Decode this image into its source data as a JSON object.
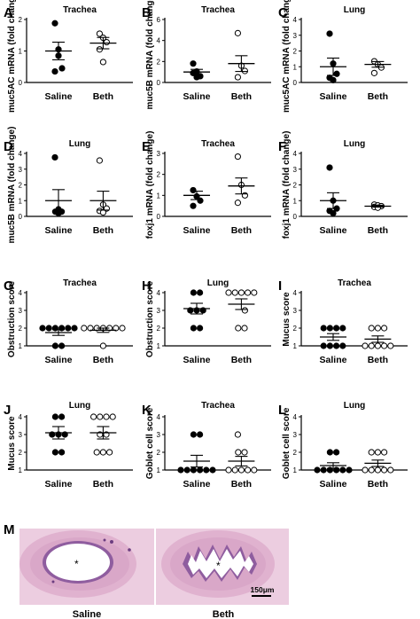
{
  "chart_data": [
    {
      "panel": "A",
      "type": "scatter",
      "title": "Trachea",
      "ylabel": "muc5AC mRNA (fold change)",
      "ylim": [
        0,
        2
      ],
      "yticks": [
        0,
        1,
        2
      ],
      "categories": [
        "Saline",
        "Beth"
      ],
      "series": [
        {
          "values": [
            1.88,
            0.85,
            0.45,
            0.35,
            1.05
          ],
          "fill": "#000"
        },
        {
          "values": [
            1.55,
            1.42,
            1.28,
            1.05,
            0.65
          ],
          "fill": "#fff"
        }
      ],
      "mean": [
        1.0,
        1.25
      ],
      "sem": [
        0.28,
        0.18
      ]
    },
    {
      "panel": "B",
      "type": "scatter",
      "title": "Trachea",
      "ylabel": "muc5B mRNA (fold change)",
      "ylim": [
        0,
        6
      ],
      "yticks": [
        0,
        2,
        4,
        6
      ],
      "categories": [
        "Saline",
        "Beth"
      ],
      "series": [
        {
          "values": [
            1.8,
            1.05,
            0.6,
            0.9,
            0.5
          ],
          "fill": "#000"
        },
        {
          "values": [
            4.7,
            1.6,
            1.1,
            0.5
          ],
          "fill": "#fff"
        }
      ],
      "mean": [
        1.0,
        1.8
      ],
      "sem": [
        0.25,
        0.75
      ]
    },
    {
      "panel": "C",
      "type": "scatter",
      "title": "Lung",
      "ylabel": "muc5AC mRNA (fold change)",
      "ylim": [
        0,
        4
      ],
      "yticks": [
        0,
        1,
        2,
        3,
        4
      ],
      "categories": [
        "Saline",
        "Beth"
      ],
      "series": [
        {
          "values": [
            3.1,
            1.2,
            0.55,
            0.3,
            0.15
          ],
          "fill": "#000"
        },
        {
          "values": [
            1.35,
            1.15,
            0.95,
            0.6
          ],
          "fill": "#fff"
        }
      ],
      "mean": [
        1.0,
        1.15
      ],
      "sem": [
        0.55,
        0.18
      ]
    },
    {
      "panel": "D",
      "type": "scatter",
      "title": "Lung",
      "ylabel": "muc5B mRNA (fold change)",
      "ylim": [
        0,
        4
      ],
      "yticks": [
        0,
        1,
        2,
        3,
        4
      ],
      "categories": [
        "Saline",
        "Beth"
      ],
      "series": [
        {
          "values": [
            3.75,
            0.45,
            0.3,
            0.3,
            0.2
          ],
          "fill": "#000"
        },
        {
          "values": [
            3.55,
            0.75,
            0.5,
            0.35,
            0.25
          ],
          "fill": "#fff"
        }
      ],
      "mean": [
        1.0,
        1.0
      ],
      "sem": [
        0.7,
        0.6
      ]
    },
    {
      "panel": "E",
      "type": "scatter",
      "title": "Trachea",
      "ylabel": "foxj1 mRNA (fold change)",
      "ylim": [
        0,
        3
      ],
      "yticks": [
        0,
        1,
        2,
        3
      ],
      "categories": [
        "Saline",
        "Beth"
      ],
      "series": [
        {
          "values": [
            1.25,
            0.95,
            0.75,
            0.5
          ],
          "fill": "#000"
        },
        {
          "values": [
            2.85,
            1.5,
            1.0,
            0.65
          ],
          "fill": "#fff"
        }
      ],
      "mean": [
        1.0,
        1.45
      ],
      "sem": [
        0.2,
        0.38
      ]
    },
    {
      "panel": "F",
      "type": "scatter",
      "title": "Lung",
      "ylabel": "foxj1 mRNA (fold change)",
      "ylim": [
        0,
        4
      ],
      "yticks": [
        0,
        1,
        2,
        3,
        4
      ],
      "categories": [
        "Saline",
        "Beth"
      ],
      "series": [
        {
          "values": [
            3.1,
            1.0,
            0.5,
            0.35,
            0.2
          ],
          "fill": "#000"
        },
        {
          "values": [
            0.75,
            0.7,
            0.65,
            0.6,
            0.55
          ],
          "fill": "#fff"
        }
      ],
      "mean": [
        1.0,
        0.65
      ],
      "sem": [
        0.5,
        0.06
      ]
    },
    {
      "panel": "G",
      "type": "scatter",
      "title": "Trachea",
      "ylabel": "Obstruction score",
      "ylim": [
        1,
        4
      ],
      "yticks": [
        1,
        2,
        3,
        4
      ],
      "categories": [
        "Saline",
        "Beth"
      ],
      "series": [
        {
          "values": [
            2,
            2,
            2,
            2,
            2,
            2,
            1,
            1
          ],
          "fill": "#000"
        },
        {
          "values": [
            2,
            2,
            2,
            2,
            2,
            2,
            2,
            1
          ],
          "fill": "#fff"
        }
      ],
      "mean": [
        1.75,
        1.88
      ],
      "sem": [
        0.16,
        0.12
      ]
    },
    {
      "panel": "H",
      "type": "scatter",
      "title": "Lung",
      "ylabel": "Obstruction score",
      "ylim": [
        1,
        4
      ],
      "yticks": [
        1,
        2,
        3,
        4
      ],
      "categories": [
        "Saline",
        "Beth"
      ],
      "series": [
        {
          "values": [
            4,
            4,
            3,
            3,
            3,
            2,
            2
          ],
          "fill": "#000"
        },
        {
          "values": [
            4,
            4,
            4,
            4,
            4,
            3,
            2,
            2
          ],
          "fill": "#fff"
        }
      ],
      "mean": [
        3.1,
        3.35
      ],
      "sem": [
        0.3,
        0.3
      ]
    },
    {
      "panel": "I",
      "type": "scatter",
      "title": "Trachea",
      "ylabel": "Mucus score",
      "ylim": [
        1,
        4
      ],
      "yticks": [
        1,
        2,
        3,
        4
      ],
      "categories": [
        "Saline",
        "Beth"
      ],
      "series": [
        {
          "values": [
            2,
            2,
            2,
            2,
            1,
            1,
            1,
            1
          ],
          "fill": "#000"
        },
        {
          "values": [
            2,
            2,
            2,
            1,
            1,
            1,
            1,
            1
          ],
          "fill": "#fff"
        }
      ],
      "mean": [
        1.5,
        1.38
      ],
      "sem": [
        0.19,
        0.18
      ]
    },
    {
      "panel": "J",
      "type": "scatter",
      "title": "Lung",
      "ylabel": "Mucus score",
      "ylim": [
        1,
        4
      ],
      "yticks": [
        1,
        2,
        3,
        4
      ],
      "categories": [
        "Saline",
        "Beth"
      ],
      "series": [
        {
          "values": [
            4,
            4,
            3,
            3,
            3,
            2,
            2
          ],
          "fill": "#000"
        },
        {
          "values": [
            4,
            4,
            4,
            4,
            3,
            3,
            2,
            2,
            2
          ],
          "fill": "#fff"
        }
      ],
      "mean": [
        3.1,
        3.1
      ],
      "sem": [
        0.35,
        0.35
      ]
    },
    {
      "panel": "K",
      "type": "scatter",
      "title": "Trachea",
      "ylabel": "Goblet cell score",
      "ylim": [
        1,
        4
      ],
      "yticks": [
        1,
        2,
        3,
        4
      ],
      "categories": [
        "Saline",
        "Beth"
      ],
      "series": [
        {
          "values": [
            3,
            3,
            1,
            1,
            1,
            1,
            1,
            1
          ],
          "fill": "#000"
        },
        {
          "values": [
            3,
            2,
            2,
            1,
            1,
            1,
            1,
            1
          ],
          "fill": "#fff"
        }
      ],
      "mean": [
        1.5,
        1.5
      ],
      "sem": [
        0.33,
        0.27
      ]
    },
    {
      "panel": "L",
      "type": "scatter",
      "title": "Lung",
      "ylabel": "Goblet cell score",
      "ylim": [
        1,
        4
      ],
      "yticks": [
        1,
        2,
        3,
        4
      ],
      "categories": [
        "Saline",
        "Beth"
      ],
      "series": [
        {
          "values": [
            2,
            2,
            1,
            1,
            1,
            1,
            1,
            1
          ],
          "fill": "#000"
        },
        {
          "values": [
            2,
            2,
            2,
            1,
            1,
            1,
            1,
            1
          ],
          "fill": "#fff"
        }
      ],
      "mean": [
        1.25,
        1.38
      ],
      "sem": [
        0.16,
        0.18
      ]
    }
  ],
  "histology": {
    "panel": "M",
    "labels": [
      "Saline",
      "Beth"
    ],
    "scale_bar": "150μm",
    "lumen_mark": "*"
  },
  "colors": {
    "tissue": "#e9bfd6",
    "tissue_dark": "#c28fbb",
    "epithelium": "#8f5d9f",
    "lumen": "#ffffff"
  }
}
